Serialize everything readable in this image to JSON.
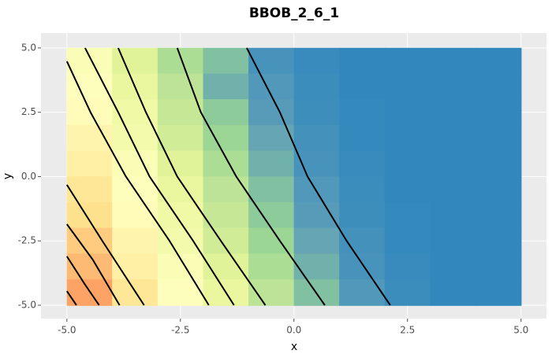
{
  "chart_data": {
    "type": "contour",
    "title": "BBOB_2_6_1",
    "xlabel": "x",
    "ylabel": "y",
    "xlim": [
      -5.57,
      5.56
    ],
    "ylim": [
      -5.52,
      5.58
    ],
    "xticks": [
      {
        "value": -5,
        "label": "-5.0"
      },
      {
        "value": -2.5,
        "label": "-2.5"
      },
      {
        "value": 0,
        "label": "0.0"
      },
      {
        "value": 2.5,
        "label": "2.5"
      },
      {
        "value": 5,
        "label": "5.0"
      }
    ],
    "yticks": [
      {
        "value": -5,
        "label": "-5.0"
      },
      {
        "value": -2.5,
        "label": "-2.5"
      },
      {
        "value": 0,
        "label": "0.0"
      },
      {
        "value": 2.5,
        "label": "2.5"
      },
      {
        "value": 5,
        "label": "5.0"
      }
    ],
    "grid": true,
    "x": [
      -4.5,
      -3.5,
      -2.5,
      -1.5,
      -0.5,
      0.5,
      1.5,
      2.5,
      3.5,
      4.5
    ],
    "y": [
      4.5,
      3.5,
      2.5,
      1.5,
      0.5,
      -0.5,
      -1.5,
      -2.5,
      -3.5,
      -4.5
    ],
    "z": [
      [
        54,
        42,
        32,
        23,
        7,
        2,
        0,
        0,
        0,
        0
      ],
      [
        56,
        45,
        35,
        19,
        10,
        3,
        0,
        0,
        0,
        0
      ],
      [
        59,
        48,
        37,
        26,
        12,
        4,
        1,
        0,
        0,
        0
      ],
      [
        62,
        50,
        39,
        29,
        16,
        6,
        1,
        0,
        0,
        0
      ],
      [
        64,
        54,
        42,
        32,
        19,
        7,
        2,
        0,
        0,
        0
      ],
      [
        68,
        56,
        45,
        35,
        23,
        10,
        3,
        0,
        0,
        0
      ],
      [
        71,
        59,
        48,
        37,
        26,
        12,
        4,
        1,
        0,
        0
      ],
      [
        75,
        62,
        50,
        39,
        29,
        16,
        6,
        1,
        0,
        0
      ],
      [
        78,
        64,
        54,
        42,
        32,
        19,
        7,
        2,
        0,
        0
      ],
      [
        82,
        68,
        56,
        45,
        35,
        23,
        10,
        3,
        0,
        0
      ]
    ],
    "zlim": [
      0,
      100
    ],
    "colorscale": [
      "#3288bd",
      "#5e9fb8",
      "#99d594",
      "#e6f598",
      "#ffffbf",
      "#fee08b",
      "#fc8d59",
      "#d53e4f"
    ],
    "contour_color": "#000000",
    "contours": [
      {
        "x": [
          -5,
          -4.79
        ],
        "y": [
          -4.45,
          -5
        ]
      },
      {
        "x": [
          -5,
          -4.6,
          -4.29
        ],
        "y": [
          -3.1,
          -4.2,
          -5
        ]
      },
      {
        "x": [
          -5,
          -4.43,
          -3.84
        ],
        "y": [
          -1.85,
          -3.23,
          -5
        ]
      },
      {
        "x": [
          -5,
          -4.22,
          -3.3
        ],
        "y": [
          -0.32,
          -2.5,
          -5
        ]
      },
      {
        "x": [
          -5,
          -4.48,
          -3.7,
          -2.74,
          -1.875
        ],
        "y": [
          4.48,
          2.5,
          0,
          -2.5,
          -5
        ]
      },
      {
        "x": [
          -4.6,
          -3.87,
          -3.18,
          -2.22,
          -1.32
        ],
        "y": [
          5,
          2.5,
          0,
          -2.5,
          -5
        ]
      },
      {
        "x": [
          -3.87,
          -3.26,
          -2.57,
          -1.61,
          -0.63
        ],
        "y": [
          5,
          2.5,
          0,
          -2.5,
          -5
        ]
      },
      {
        "x": [
          -2.57,
          -2.05,
          -1.27,
          -0.31,
          0.68
        ],
        "y": [
          5,
          2.5,
          0,
          -2.5,
          -5
        ]
      },
      {
        "x": [
          -1.04,
          -0.31,
          0.3,
          1.16,
          2.12
        ],
        "y": [
          5,
          2.5,
          0,
          -2.5,
          -5
        ]
      }
    ]
  }
}
